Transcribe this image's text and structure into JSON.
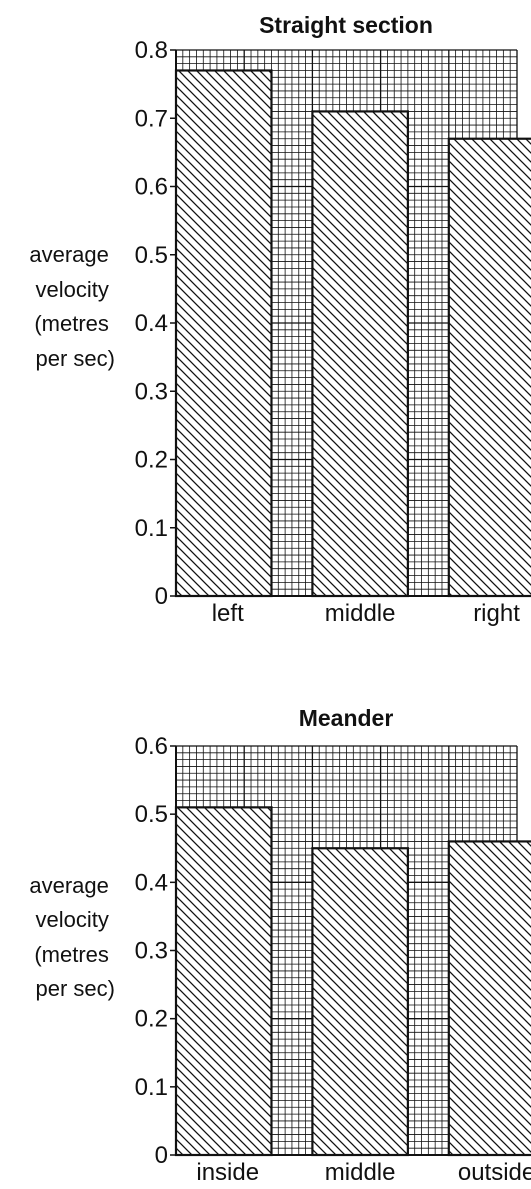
{
  "chart_data": [
    {
      "type": "bar",
      "title": "Straight section",
      "ylabel_lines": [
        "average",
        "velocity",
        "(metres",
        "per sec)"
      ],
      "categories": [
        "left",
        "middle",
        "right"
      ],
      "values": [
        0.77,
        0.71,
        0.67
      ],
      "ylim": [
        0,
        0.8
      ],
      "yticks": [
        "0",
        "0.1",
        "0.2",
        "0.3",
        "0.4",
        "0.5",
        "0.6",
        "0.7",
        "0.8"
      ],
      "grid": true,
      "bar_fill": "diagonal-hatch"
    },
    {
      "type": "bar",
      "title": "Meander",
      "ylabel_lines": [
        "average",
        "velocity",
        "(metres",
        "per sec)"
      ],
      "categories": [
        "inside",
        "middle",
        "outside"
      ],
      "values": [
        0.51,
        0.45,
        0.46
      ],
      "ylim": [
        0,
        0.6
      ],
      "yticks": [
        "0",
        "0.1",
        "0.2",
        "0.3",
        "0.4",
        "0.5",
        "0.6"
      ],
      "grid": true,
      "bar_fill": "diagonal-hatch"
    }
  ],
  "colors": {
    "ink": "#111111",
    "background": "#ffffff"
  }
}
